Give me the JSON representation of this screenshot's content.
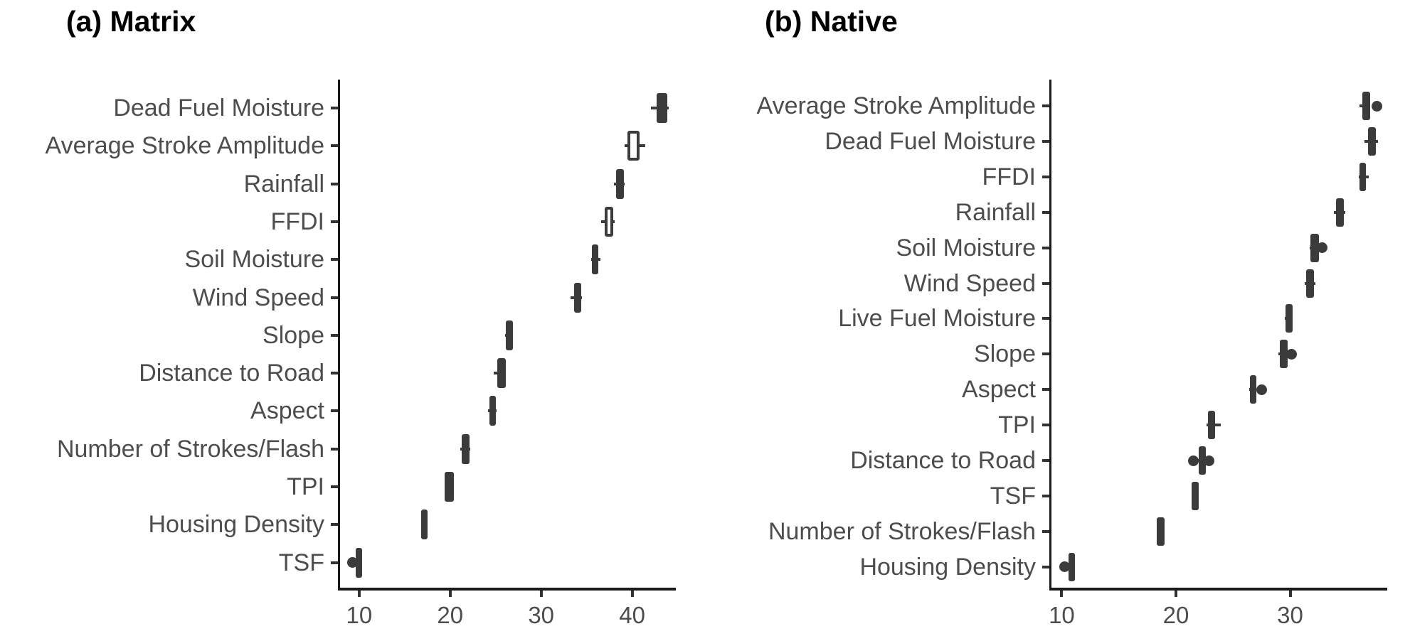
{
  "figure": {
    "background": "#ffffff",
    "colors": {
      "box": "#3b3b3b",
      "axis_line": "#1a1a1a",
      "tick": "#333333",
      "label_text": "#4d4d4d",
      "title_text": "#000000",
      "white_box_fill": "#ffffff"
    }
  },
  "chart_data": [
    {
      "type": "boxplot",
      "orientation": "horizontal",
      "title": "(a) Matrix",
      "xlabel": "",
      "ylabel": "",
      "x_domain": [
        7.9,
        44.8
      ],
      "x_ticks": [
        "10",
        "20",
        "30",
        "40"
      ],
      "x_tick_values": [
        10,
        20,
        30,
        40
      ],
      "grid": "off",
      "categories": [
        "Dead Fuel Moisture",
        "Average Stroke Amplitude",
        "Rainfall",
        "FFDI",
        "Soil Moisture",
        "Wind Speed",
        "Slope",
        "Distance to Road",
        "Aspect",
        "Number of Strokes/Flash",
        "TPI",
        "Housing Density",
        "TSF"
      ],
      "rows": [
        {
          "label": "Dead Fuel Moisture",
          "lo": 42.1,
          "q1": 42.7,
          "q3": 43.9,
          "hi": 44.0,
          "dots": [],
          "fill": "dark"
        },
        {
          "label": "Average Stroke Amplitude",
          "lo": 39.2,
          "q1": 39.5,
          "q3": 40.8,
          "hi": 41.4,
          "dots": [],
          "fill": "white"
        },
        {
          "label": "Rainfall",
          "lo": 38.0,
          "q1": 38.2,
          "q3": 39.1,
          "hi": 39.2,
          "dots": [],
          "fill": "dark"
        },
        {
          "label": "FFDI",
          "lo": 36.6,
          "q1": 37.0,
          "q3": 37.9,
          "hi": 38.1,
          "dots": [],
          "fill": "white"
        },
        {
          "label": "Soil Moisture",
          "lo": 35.5,
          "q1": 35.6,
          "q3": 36.3,
          "hi": 36.5,
          "dots": [],
          "fill": "dark"
        },
        {
          "label": "Wind Speed",
          "lo": 33.2,
          "q1": 33.6,
          "q3": 34.4,
          "hi": 34.5,
          "dots": [],
          "fill": "dark"
        },
        {
          "label": "Slope",
          "lo": 26.0,
          "q1": 26.1,
          "q3": 26.9,
          "hi": 26.9,
          "dots": [],
          "fill": "dark"
        },
        {
          "label": "Distance to Road",
          "lo": 24.8,
          "q1": 25.2,
          "q3": 26.1,
          "hi": 26.1,
          "dots": [],
          "fill": "dark"
        },
        {
          "label": "Aspect",
          "lo": 24.2,
          "q1": 24.3,
          "q3": 25.0,
          "hi": 25.1,
          "dots": [],
          "fill": "dark"
        },
        {
          "label": "Number of Strokes/Flash",
          "lo": 21.1,
          "q1": 21.3,
          "q3": 22.1,
          "hi": 22.2,
          "dots": [],
          "fill": "dark"
        },
        {
          "label": "TPI",
          "lo": 19.4,
          "q1": 19.4,
          "q3": 20.4,
          "hi": 20.4,
          "dots": [],
          "fill": "dark"
        },
        {
          "label": "Housing Density",
          "lo": 16.8,
          "q1": 16.8,
          "q3": 17.4,
          "hi": 17.4,
          "dots": [],
          "fill": "dark"
        },
        {
          "label": "TSF",
          "lo": 9.6,
          "q1": 9.6,
          "q3": 10.2,
          "hi": 10.2,
          "dots": [
            9.3
          ],
          "fill": "dark"
        }
      ]
    },
    {
      "type": "boxplot",
      "orientation": "horizontal",
      "title": "(b) Native",
      "xlabel": "",
      "ylabel": "",
      "x_domain": [
        9.1,
        38.5
      ],
      "x_ticks": [
        "10",
        "20",
        "30"
      ],
      "x_tick_values": [
        10,
        20,
        30
      ],
      "grid": "off",
      "categories": [
        "Average Stroke Amplitude",
        "Dead Fuel Moisture",
        "FFDI",
        "Rainfall",
        "Soil Moisture",
        "Wind Speed",
        "Live Fuel Moisture",
        "Slope",
        "Aspect",
        "TPI",
        "Distance to Road",
        "TSF",
        "Number of Strokes/Flash",
        "Housing Density"
      ],
      "rows": [
        {
          "label": "Average Stroke Amplitude",
          "lo": 36.1,
          "q1": 36.3,
          "q3": 37.0,
          "hi": 37.0,
          "dots": [
            37.6
          ],
          "fill": "dark"
        },
        {
          "label": "Dead Fuel Moisture",
          "lo": 36.5,
          "q1": 36.8,
          "q3": 37.5,
          "hi": 37.7,
          "dots": [],
          "fill": "dark"
        },
        {
          "label": "FFDI",
          "lo": 36.0,
          "q1": 36.1,
          "q3": 36.6,
          "hi": 36.9,
          "dots": [],
          "fill": "dark"
        },
        {
          "label": "Rainfall",
          "lo": 33.8,
          "q1": 34.0,
          "q3": 34.7,
          "hi": 34.8,
          "dots": [],
          "fill": "dark"
        },
        {
          "label": "Soil Moisture",
          "lo": 31.7,
          "q1": 31.8,
          "q3": 32.5,
          "hi": 32.5,
          "dots": [
            32.8
          ],
          "fill": "dark"
        },
        {
          "label": "Wind Speed",
          "lo": 31.3,
          "q1": 31.4,
          "q3": 32.1,
          "hi": 32.2,
          "dots": [],
          "fill": "dark"
        },
        {
          "label": "Live Fuel Moisture",
          "lo": 29.5,
          "q1": 29.6,
          "q3": 30.2,
          "hi": 30.2,
          "dots": [],
          "fill": "dark"
        },
        {
          "label": "Slope",
          "lo": 29.0,
          "q1": 29.1,
          "q3": 29.8,
          "hi": 29.8,
          "dots": [
            30.1
          ],
          "fill": "dark"
        },
        {
          "label": "Aspect",
          "lo": 26.4,
          "q1": 26.5,
          "q3": 27.0,
          "hi": 27.0,
          "dots": [
            27.5
          ],
          "fill": "dark"
        },
        {
          "label": "TPI",
          "lo": 22.7,
          "q1": 22.8,
          "q3": 23.4,
          "hi": 23.9,
          "dots": [],
          "fill": "dark"
        },
        {
          "label": "Distance to Road",
          "lo": 21.9,
          "q1": 22.0,
          "q3": 22.6,
          "hi": 22.7,
          "dots": [
            21.5,
            22.9
          ],
          "fill": "dark"
        },
        {
          "label": "TSF",
          "lo": 21.4,
          "q1": 21.4,
          "q3": 22.0,
          "hi": 22.0,
          "dots": [],
          "fill": "dark"
        },
        {
          "label": "Number of Strokes/Flash",
          "lo": 18.3,
          "q1": 18.3,
          "q3": 19.0,
          "hi": 19.0,
          "dots": [],
          "fill": "dark"
        },
        {
          "label": "Housing Density",
          "lo": 10.6,
          "q1": 10.6,
          "q3": 11.1,
          "hi": 11.1,
          "dots": [
            10.25
          ],
          "fill": "dark"
        }
      ]
    }
  ]
}
